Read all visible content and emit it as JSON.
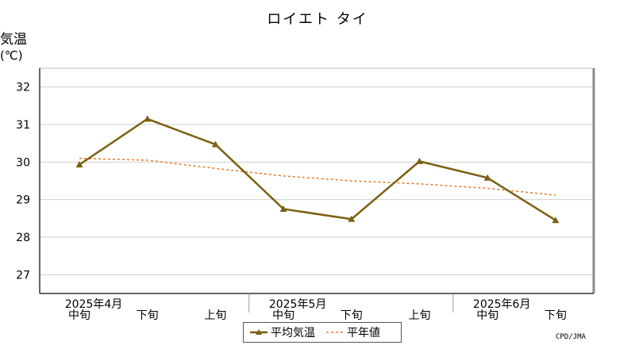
{
  "chart_data": {
    "type": "line",
    "title": "ロイエト タイ",
    "ylabel": "気温",
    "yunit": "(℃)",
    "ylim": [
      26.5,
      32.5
    ],
    "yticks": [
      27,
      28,
      29,
      30,
      31,
      32
    ],
    "grid": true,
    "categories": [
      "中旬",
      "下旬",
      "上旬",
      "中旬",
      "下旬",
      "上旬",
      "中旬",
      "下旬"
    ],
    "month_labels": [
      {
        "label": "2025年4月",
        "index": 0
      },
      {
        "label": "2025年5月",
        "index": 3
      },
      {
        "label": "2025年6月",
        "index": 6
      }
    ],
    "series": [
      {
        "name": "平均気温",
        "color": "#7a6010",
        "style": "solid-triangle",
        "values": [
          29.93,
          31.15,
          30.47,
          28.75,
          28.48,
          30.02,
          29.58,
          28.45
        ]
      },
      {
        "name": "平年値",
        "color": "#e8792a",
        "style": "dashed",
        "values": [
          30.1,
          30.05,
          29.83,
          29.63,
          29.5,
          29.42,
          29.3,
          29.12
        ]
      }
    ],
    "legend_position": "bottom",
    "credit": "CPD/JMA"
  }
}
